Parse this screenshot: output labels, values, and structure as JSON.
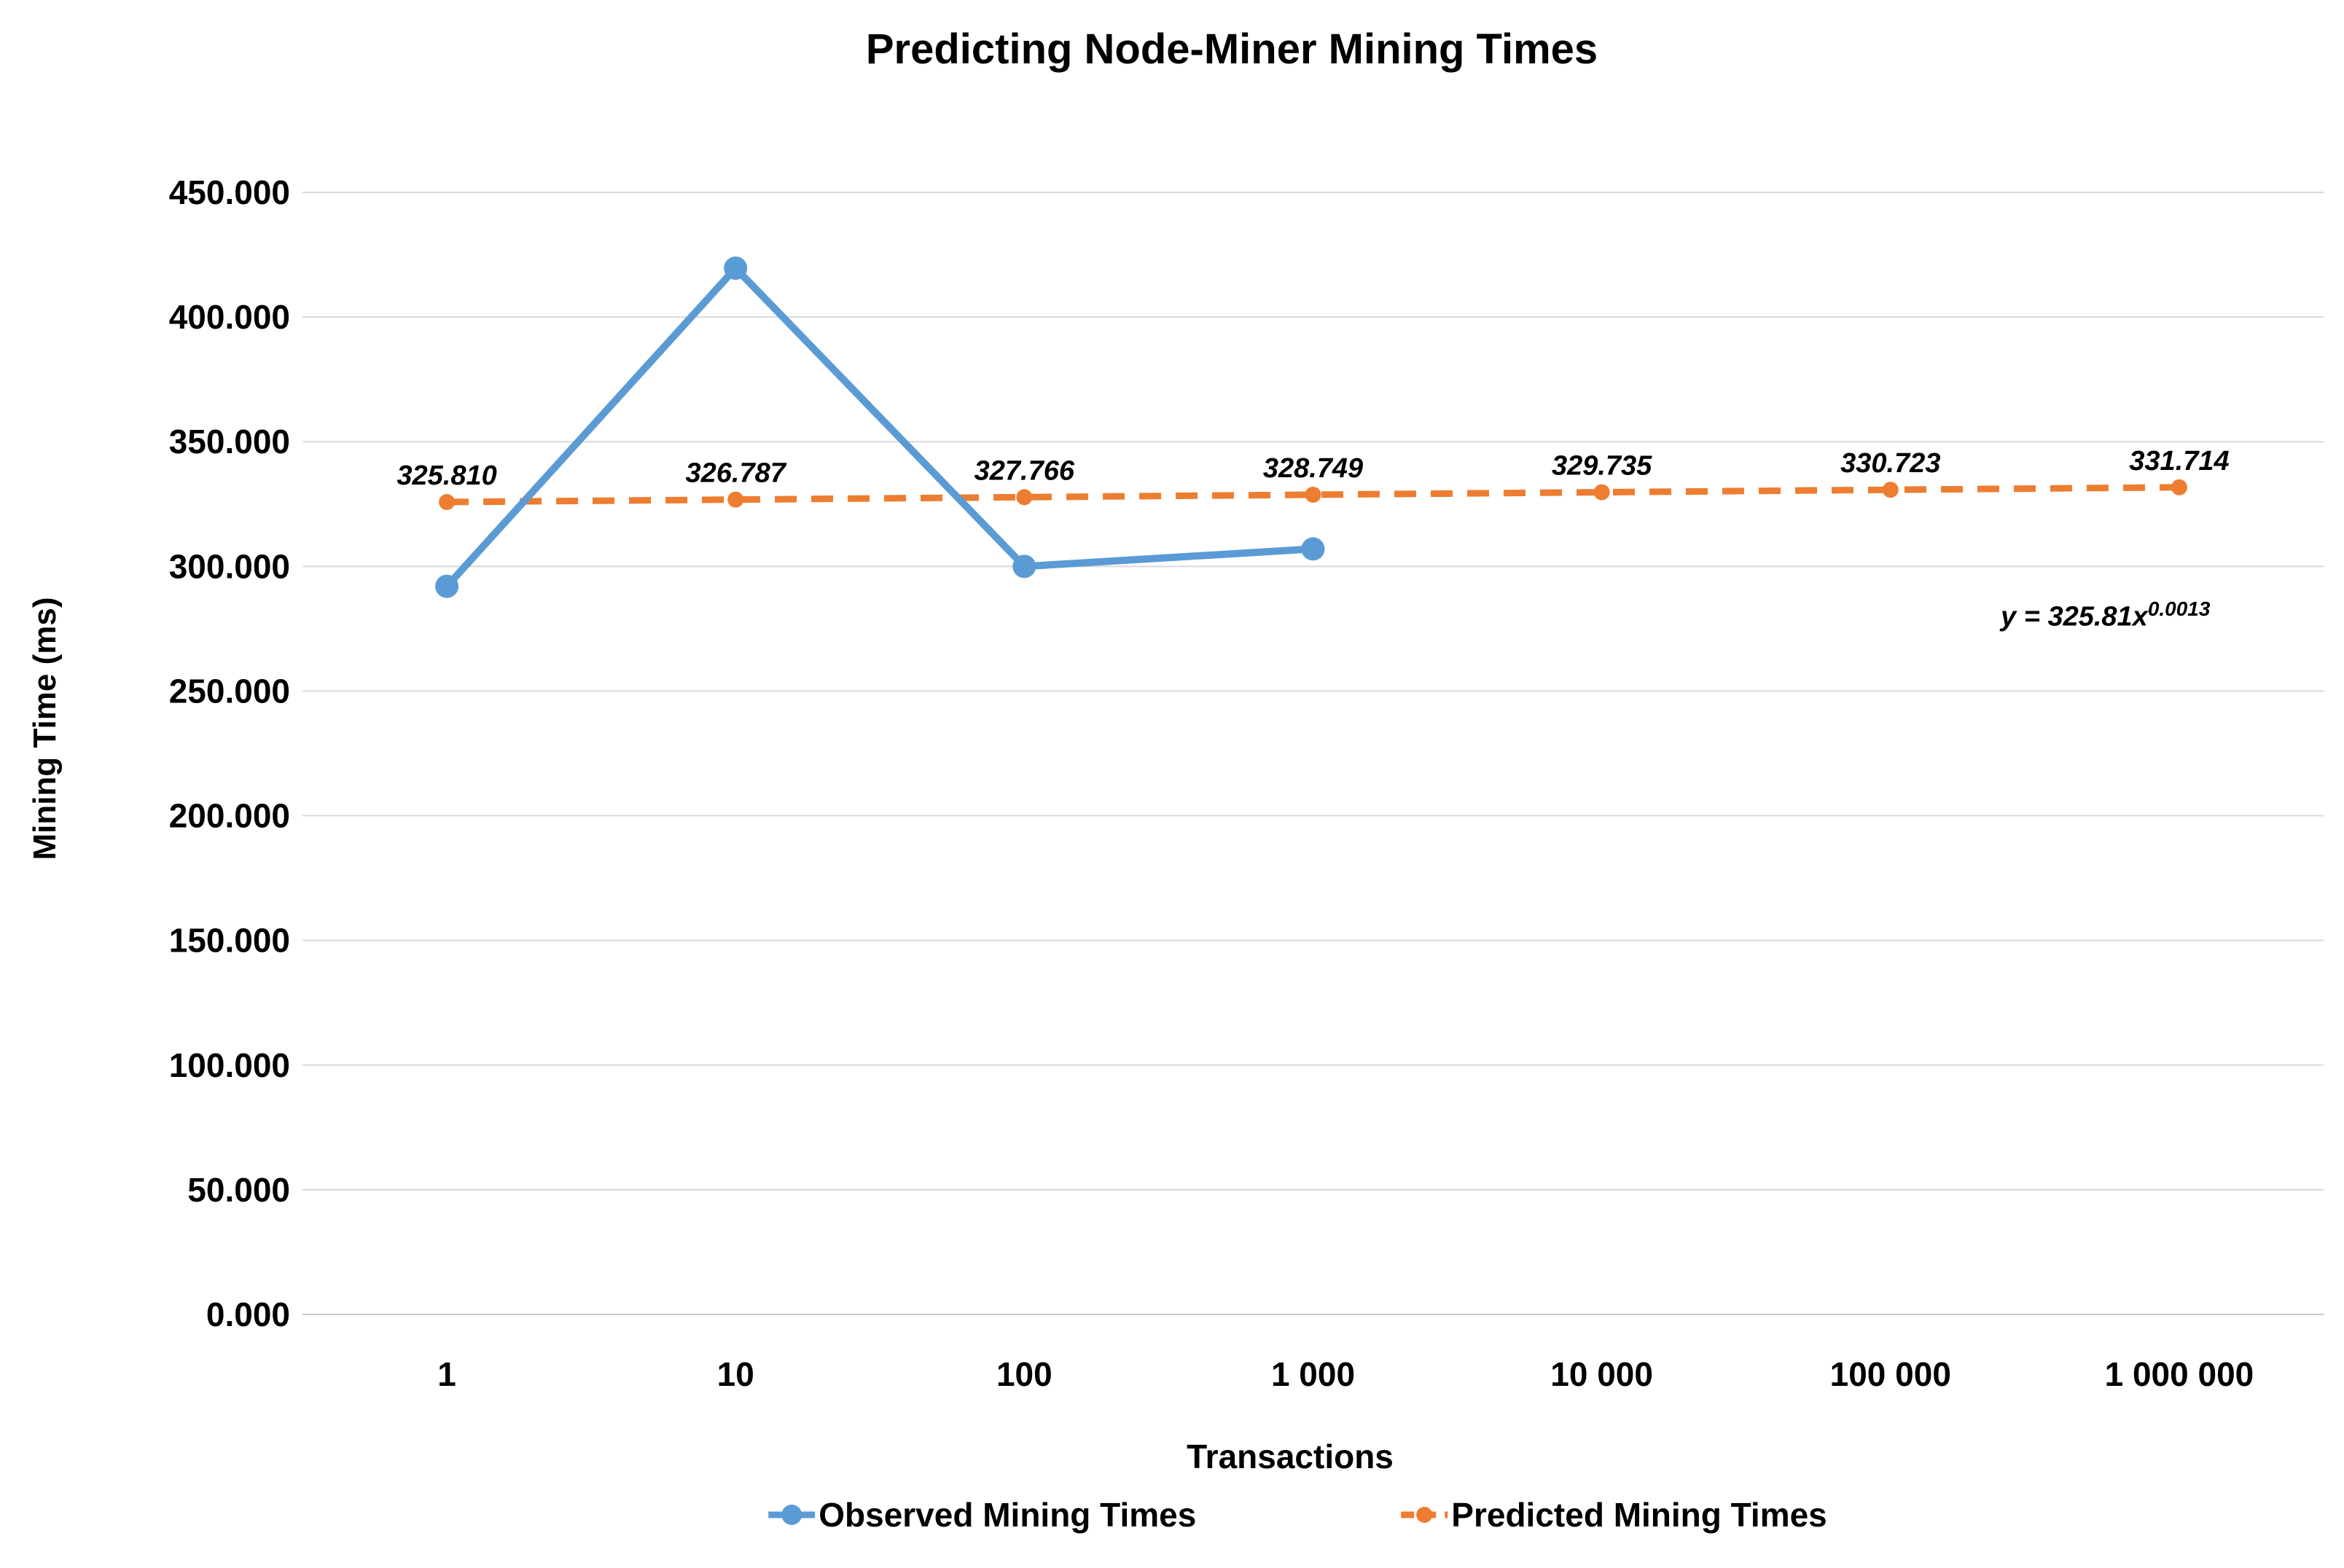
{
  "chart_data": {
    "type": "line",
    "title": "Predicting Node-Miner Mining Times",
    "xlabel": "Transactions",
    "ylabel": "Mining Time (ms)",
    "categories": [
      "1",
      "10",
      "100",
      "1 000",
      "10 000",
      "100 000",
      "1 000 000"
    ],
    "ylim": [
      0,
      450000
    ],
    "grid": true,
    "legend_position": "bottom",
    "y_ticks": [
      {
        "value": 0,
        "label": "0.000"
      },
      {
        "value": 50000,
        "label": "50.000"
      },
      {
        "value": 100000,
        "label": "100.000"
      },
      {
        "value": 150000,
        "label": "150.000"
      },
      {
        "value": 200000,
        "label": "200.000"
      },
      {
        "value": 250000,
        "label": "250.000"
      },
      {
        "value": 300000,
        "label": "300.000"
      },
      {
        "value": 350000,
        "label": "350.000"
      },
      {
        "value": 400000,
        "label": "400.000"
      },
      {
        "value": 450000,
        "label": "450.000"
      }
    ],
    "series": [
      {
        "name": "Observed Mining Times",
        "color": "#5B9BD5",
        "line_style": "solid",
        "marker": "circle",
        "values": [
          292000,
          419600,
          300000,
          307000,
          null,
          null,
          null
        ]
      },
      {
        "name": "Predicted Mining Times",
        "color": "#ED7D31",
        "line_style": "dashed",
        "marker": "circle",
        "values": [
          325810,
          326787,
          327766,
          328749,
          329735,
          330723,
          331714
        ],
        "data_labels": [
          "325.810",
          "326.787",
          "327.766",
          "328.749",
          "329.735",
          "330.723",
          "331.714"
        ]
      }
    ],
    "annotation": {
      "equation_base": "y = 325.81x",
      "equation_exponent": "0.0013"
    },
    "colors": {
      "gridline": "#D9D9D9",
      "axis_line": "#C6C6C6",
      "text": "#000000"
    }
  }
}
